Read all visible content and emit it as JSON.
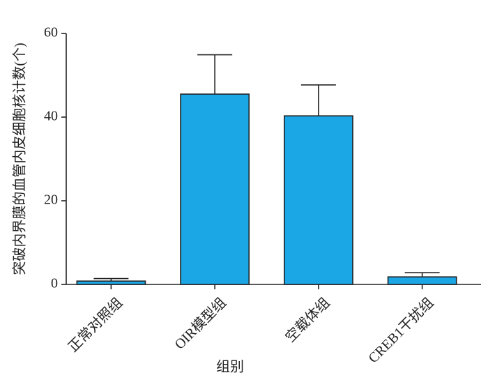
{
  "chart_data": {
    "type": "bar",
    "ylabel": "突破内界膜的血管内皮细胞核计数(个)",
    "xlabel": "组别",
    "categories": [
      "正常对照组",
      "OIR模型组",
      "空载体组",
      "CREB1干扰组"
    ],
    "values": [
      0.8,
      45.5,
      40.3,
      1.8
    ],
    "errors": [
      0.6,
      9.4,
      7.4,
      1.0
    ],
    "color": "#1ba6e6",
    "ylim": [
      0,
      60
    ],
    "yticks": [
      0,
      20,
      40,
      60
    ],
    "grid": false
  }
}
